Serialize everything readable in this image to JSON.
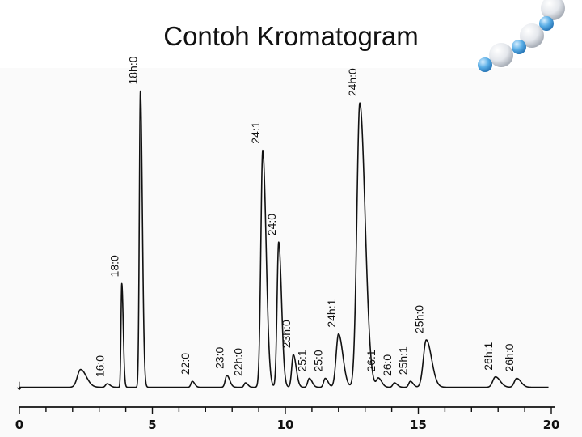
{
  "slide": {
    "title": "Contoh Kromatogram",
    "decoration": "bead-chain-icon",
    "bead_colors": [
      "#dfe3ea",
      "#5aaee6"
    ]
  },
  "chart_data": {
    "type": "line",
    "title": "",
    "xlabel": "",
    "ylabel": "",
    "xlim": [
      0,
      20
    ],
    "ylim": [
      0,
      100
    ],
    "x_ticks": [
      0,
      5,
      10,
      15,
      20
    ],
    "x_tick_labels": [
      "0",
      "5",
      "10",
      "15",
      "20"
    ],
    "grid": false,
    "legend": "none",
    "injection_marker": "↓",
    "series": [
      {
        "peaks": [
          {
            "x": 2.3,
            "height": 6,
            "width": 0.12,
            "label": ""
          },
          {
            "x": 3.3,
            "height": 1.2,
            "width": 0.06,
            "label": "16:0"
          },
          {
            "x": 3.85,
            "height": 35,
            "width": 0.03,
            "label": "18:0"
          },
          {
            "x": 4.55,
            "height": 100,
            "width": 0.04,
            "label": "18h:0"
          },
          {
            "x": 6.5,
            "height": 2,
            "width": 0.05,
            "label": "22:0"
          },
          {
            "x": 7.8,
            "height": 4,
            "width": 0.06,
            "label": "23:0"
          },
          {
            "x": 8.5,
            "height": 1.5,
            "width": 0.05,
            "label": "22h:0"
          },
          {
            "x": 9.15,
            "height": 80,
            "width": 0.07,
            "label": "24:1"
          },
          {
            "x": 9.75,
            "height": 49,
            "width": 0.06,
            "label": "24:0"
          },
          {
            "x": 10.3,
            "height": 11,
            "width": 0.06,
            "label": "23h:0"
          },
          {
            "x": 10.9,
            "height": 3,
            "width": 0.06,
            "label": "25:1"
          },
          {
            "x": 11.5,
            "height": 3,
            "width": 0.06,
            "label": "25:0"
          },
          {
            "x": 12.0,
            "height": 18,
            "width": 0.09,
            "label": "24h:1"
          },
          {
            "x": 12.8,
            "height": 96,
            "width": 0.11,
            "label": "24h:0"
          },
          {
            "x": 13.5,
            "height": 3,
            "width": 0.07,
            "label": "26:1"
          },
          {
            "x": 14.1,
            "height": 1.5,
            "width": 0.06,
            "label": "26:0"
          },
          {
            "x": 14.7,
            "height": 2,
            "width": 0.06,
            "label": "25h:1"
          },
          {
            "x": 15.3,
            "height": 16,
            "width": 0.11,
            "label": "25h:0"
          },
          {
            "x": 17.9,
            "height": 3.5,
            "width": 0.1,
            "label": "26h:1"
          },
          {
            "x": 18.7,
            "height": 3,
            "width": 0.09,
            "label": "26h:0"
          }
        ]
      }
    ]
  }
}
